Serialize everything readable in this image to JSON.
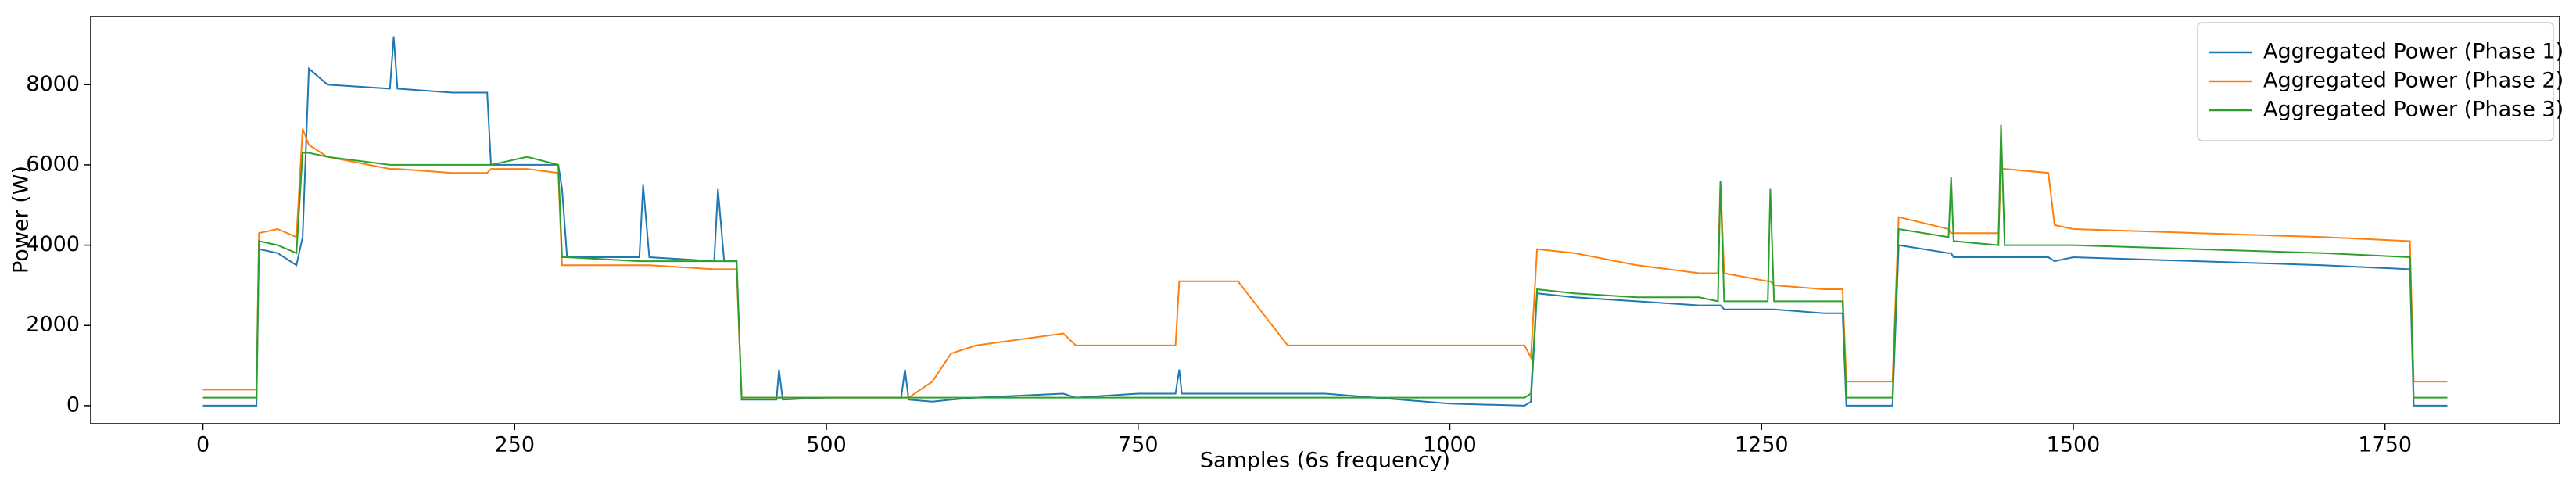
{
  "chart_data": {
    "type": "line",
    "xlabel": "Samples (6s frequency)",
    "ylabel": "Power (W)",
    "x": [
      0,
      43,
      45,
      60,
      75,
      80,
      85,
      100,
      150,
      153,
      156,
      200,
      228,
      231,
      260,
      285,
      288,
      292,
      350,
      353,
      358,
      410,
      413,
      418,
      428,
      432,
      460,
      462,
      465,
      500,
      560,
      563,
      566,
      585,
      600,
      620,
      690,
      700,
      750,
      780,
      783,
      785,
      830,
      870,
      900,
      1000,
      1060,
      1065,
      1070,
      1100,
      1150,
      1200,
      1215,
      1217,
      1220,
      1255,
      1257,
      1260,
      1300,
      1315,
      1318,
      1355,
      1360,
      1400,
      1402,
      1404,
      1440,
      1442,
      1445,
      1480,
      1485,
      1500,
      1600,
      1700,
      1770,
      1773,
      1800
    ],
    "series": [
      {
        "name": "Aggregated Power (Phase 1)",
        "color": "#1f77b4",
        "values": [
          0,
          0,
          3900,
          3800,
          3500,
          4200,
          8400,
          8000,
          7900,
          9200,
          7900,
          7800,
          7800,
          6000,
          6000,
          6000,
          5400,
          3700,
          3700,
          5500,
          3700,
          3600,
          5400,
          3600,
          3600,
          150,
          150,
          900,
          150,
          200,
          200,
          900,
          150,
          100,
          150,
          200,
          300,
          200,
          300,
          300,
          900,
          300,
          300,
          300,
          300,
          50,
          0,
          100,
          2800,
          2700,
          2600,
          2500,
          2500,
          2500,
          2400,
          2400,
          2400,
          2400,
          2300,
          2300,
          0,
          0,
          4000,
          3800,
          3800,
          3700,
          3700,
          3700,
          3700,
          3700,
          3600,
          3700,
          3600,
          3500,
          3400,
          0,
          0
        ]
      },
      {
        "name": "Aggregated Power (Phase 2)",
        "color": "#ff7f0e",
        "values": [
          400,
          400,
          4300,
          4400,
          4200,
          6900,
          6500,
          6200,
          5900,
          5900,
          5900,
          5800,
          5800,
          5900,
          5900,
          5800,
          3500,
          3500,
          3500,
          3500,
          3500,
          3400,
          3400,
          3400,
          3400,
          200,
          200,
          200,
          200,
          200,
          200,
          200,
          200,
          600,
          1300,
          1500,
          1800,
          1500,
          1500,
          1500,
          3100,
          3100,
          3100,
          1500,
          1500,
          1500,
          1500,
          1200,
          3900,
          3800,
          3500,
          3300,
          3300,
          5600,
          3300,
          3100,
          3100,
          3000,
          2900,
          2900,
          600,
          600,
          4700,
          4400,
          4300,
          4300,
          4300,
          5900,
          5900,
          5800,
          4500,
          4400,
          4300,
          4200,
          4100,
          600,
          600
        ]
      },
      {
        "name": "Aggregated Power (Phase 3)",
        "color": "#2ca02c",
        "values": [
          200,
          200,
          4100,
          4000,
          3800,
          6300,
          6300,
          6200,
          6000,
          6000,
          6000,
          6000,
          6000,
          6000,
          6200,
          6000,
          3700,
          3700,
          3600,
          3600,
          3600,
          3600,
          3600,
          3600,
          3600,
          200,
          200,
          200,
          200,
          200,
          200,
          200,
          200,
          200,
          200,
          200,
          200,
          200,
          200,
          200,
          200,
          200,
          200,
          200,
          200,
          200,
          200,
          300,
          2900,
          2800,
          2700,
          2700,
          2600,
          5600,
          2600,
          2600,
          5400,
          2600,
          2600,
          2600,
          200,
          200,
          4400,
          4200,
          5700,
          4100,
          4000,
          7000,
          4000,
          4000,
          4000,
          4000,
          3900,
          3800,
          3700,
          200,
          200
        ]
      }
    ],
    "xlim": [
      -90,
      1890
    ],
    "ylim": [
      -450,
      9700
    ],
    "xticks": [
      0,
      250,
      500,
      750,
      1000,
      1250,
      1500,
      1750
    ],
    "yticks": [
      0,
      2000,
      4000,
      6000,
      8000
    ],
    "legend": "upper right"
  }
}
